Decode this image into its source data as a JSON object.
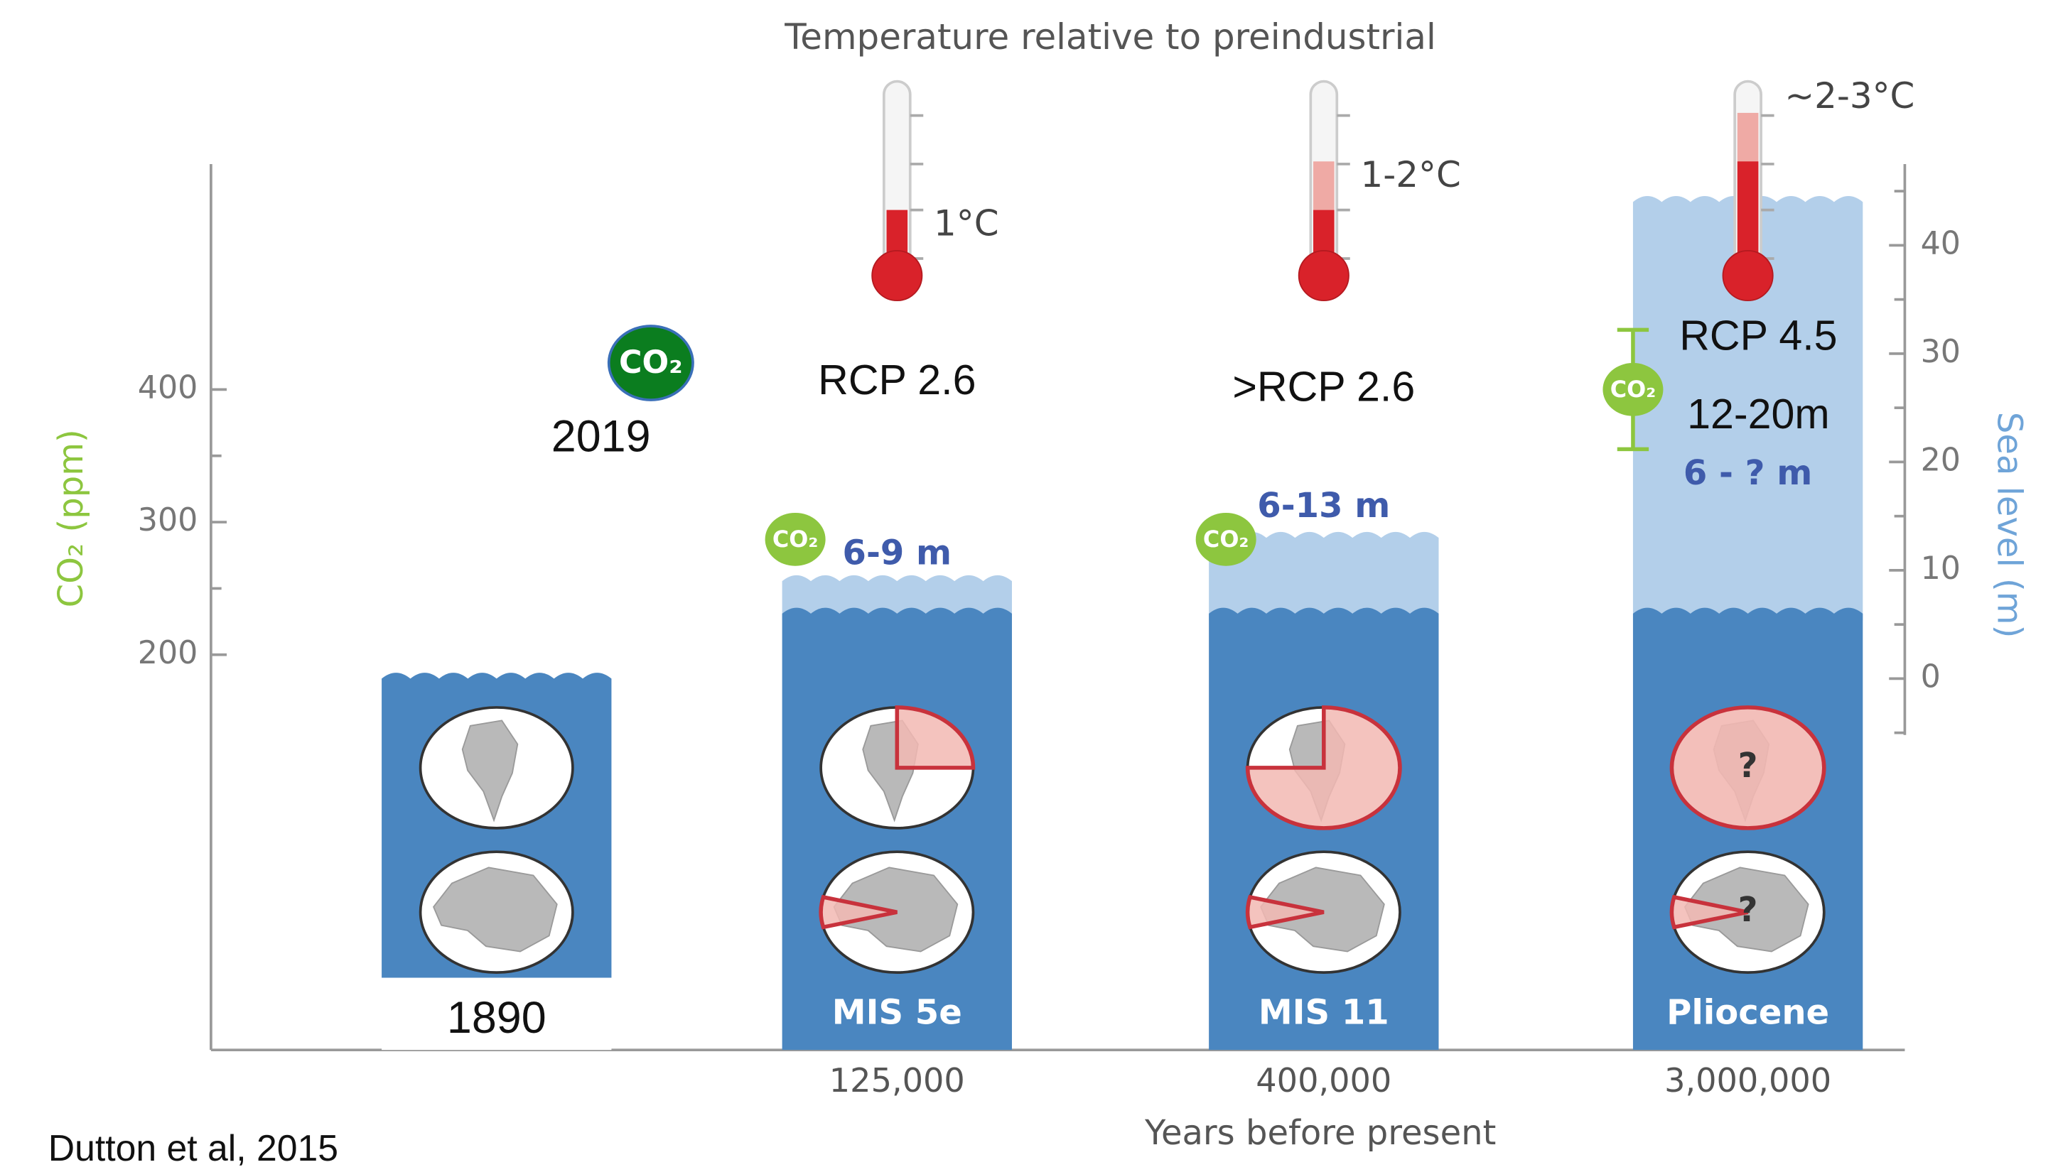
{
  "chart_data": {
    "type": "infographic",
    "title": "Temperature relative to preindustrial",
    "ylabel": "CO₂ (ppm)",
    "y2label": "Sea level (m)",
    "xlabel": "Years before present",
    "source": "Dutton et al, 2015",
    "co2_symbol": "CO₂",
    "ylim": [
      -98,
      570
    ],
    "yticks": [
      200,
      300,
      400
    ],
    "yminor": [
      250,
      350
    ],
    "y2lim": [
      -5.2,
      47.5
    ],
    "y2ticks": [
      0,
      10,
      20,
      30,
      40
    ],
    "y2minor": [
      -5,
      5,
      15,
      25,
      35,
      45
    ],
    "colors": {
      "ocean": "#4a86c0",
      "ocean_high": "#b3cfea",
      "co2": "#8dc63f",
      "co2_now": "#0b7d1f",
      "thermo": "#d9222a",
      "thermo_high": "#efaaa5",
      "loss": "#f2b8b3",
      "loss_edge": "#c8323c",
      "sea_text": "#3f5bab"
    },
    "co2_now": {
      "label": "2019",
      "value": 420
    },
    "columns": [
      {
        "x_label": "1890",
        "sea_level": 0,
        "greenland_loss": 0,
        "antarctica_loss": 0
      },
      {
        "era": "MIS 5e",
        "x_label": "125,000",
        "temp_label": "1°C",
        "temperature": 1,
        "temperature_high": 1,
        "scenario": "RCP 2.6",
        "sea_label": "6-9 m",
        "sea_level": 6,
        "sea_level_high": 9,
        "co2": 287,
        "greenland_loss": 25,
        "antarctica_loss": 8
      },
      {
        "era": "MIS 11",
        "x_label": "400,000",
        "temp_label": "1-2°C",
        "temperature": 1,
        "temperature_high": 2,
        "scenario": ">RCP 2.6",
        "sea_label": "6-13 m",
        "sea_level": 6,
        "sea_level_high": 13,
        "co2": 287,
        "greenland_loss": 75,
        "antarctica_loss": 8
      },
      {
        "era": "Pliocene",
        "x_label": "3,000,000",
        "temp_label": "~2-3°C",
        "temperature": 2,
        "temperature_high": 3,
        "scenario": "RCP 4.5",
        "scenario_note": "12-20m",
        "sea_label": "6 - ? m",
        "sea_level": 6,
        "sea_level_high": 44,
        "co2": 400,
        "co2_error": 45,
        "greenland_loss": 100,
        "antarctica_loss": 8,
        "greenland_note": "?",
        "antarctica_note": "?"
      }
    ]
  }
}
